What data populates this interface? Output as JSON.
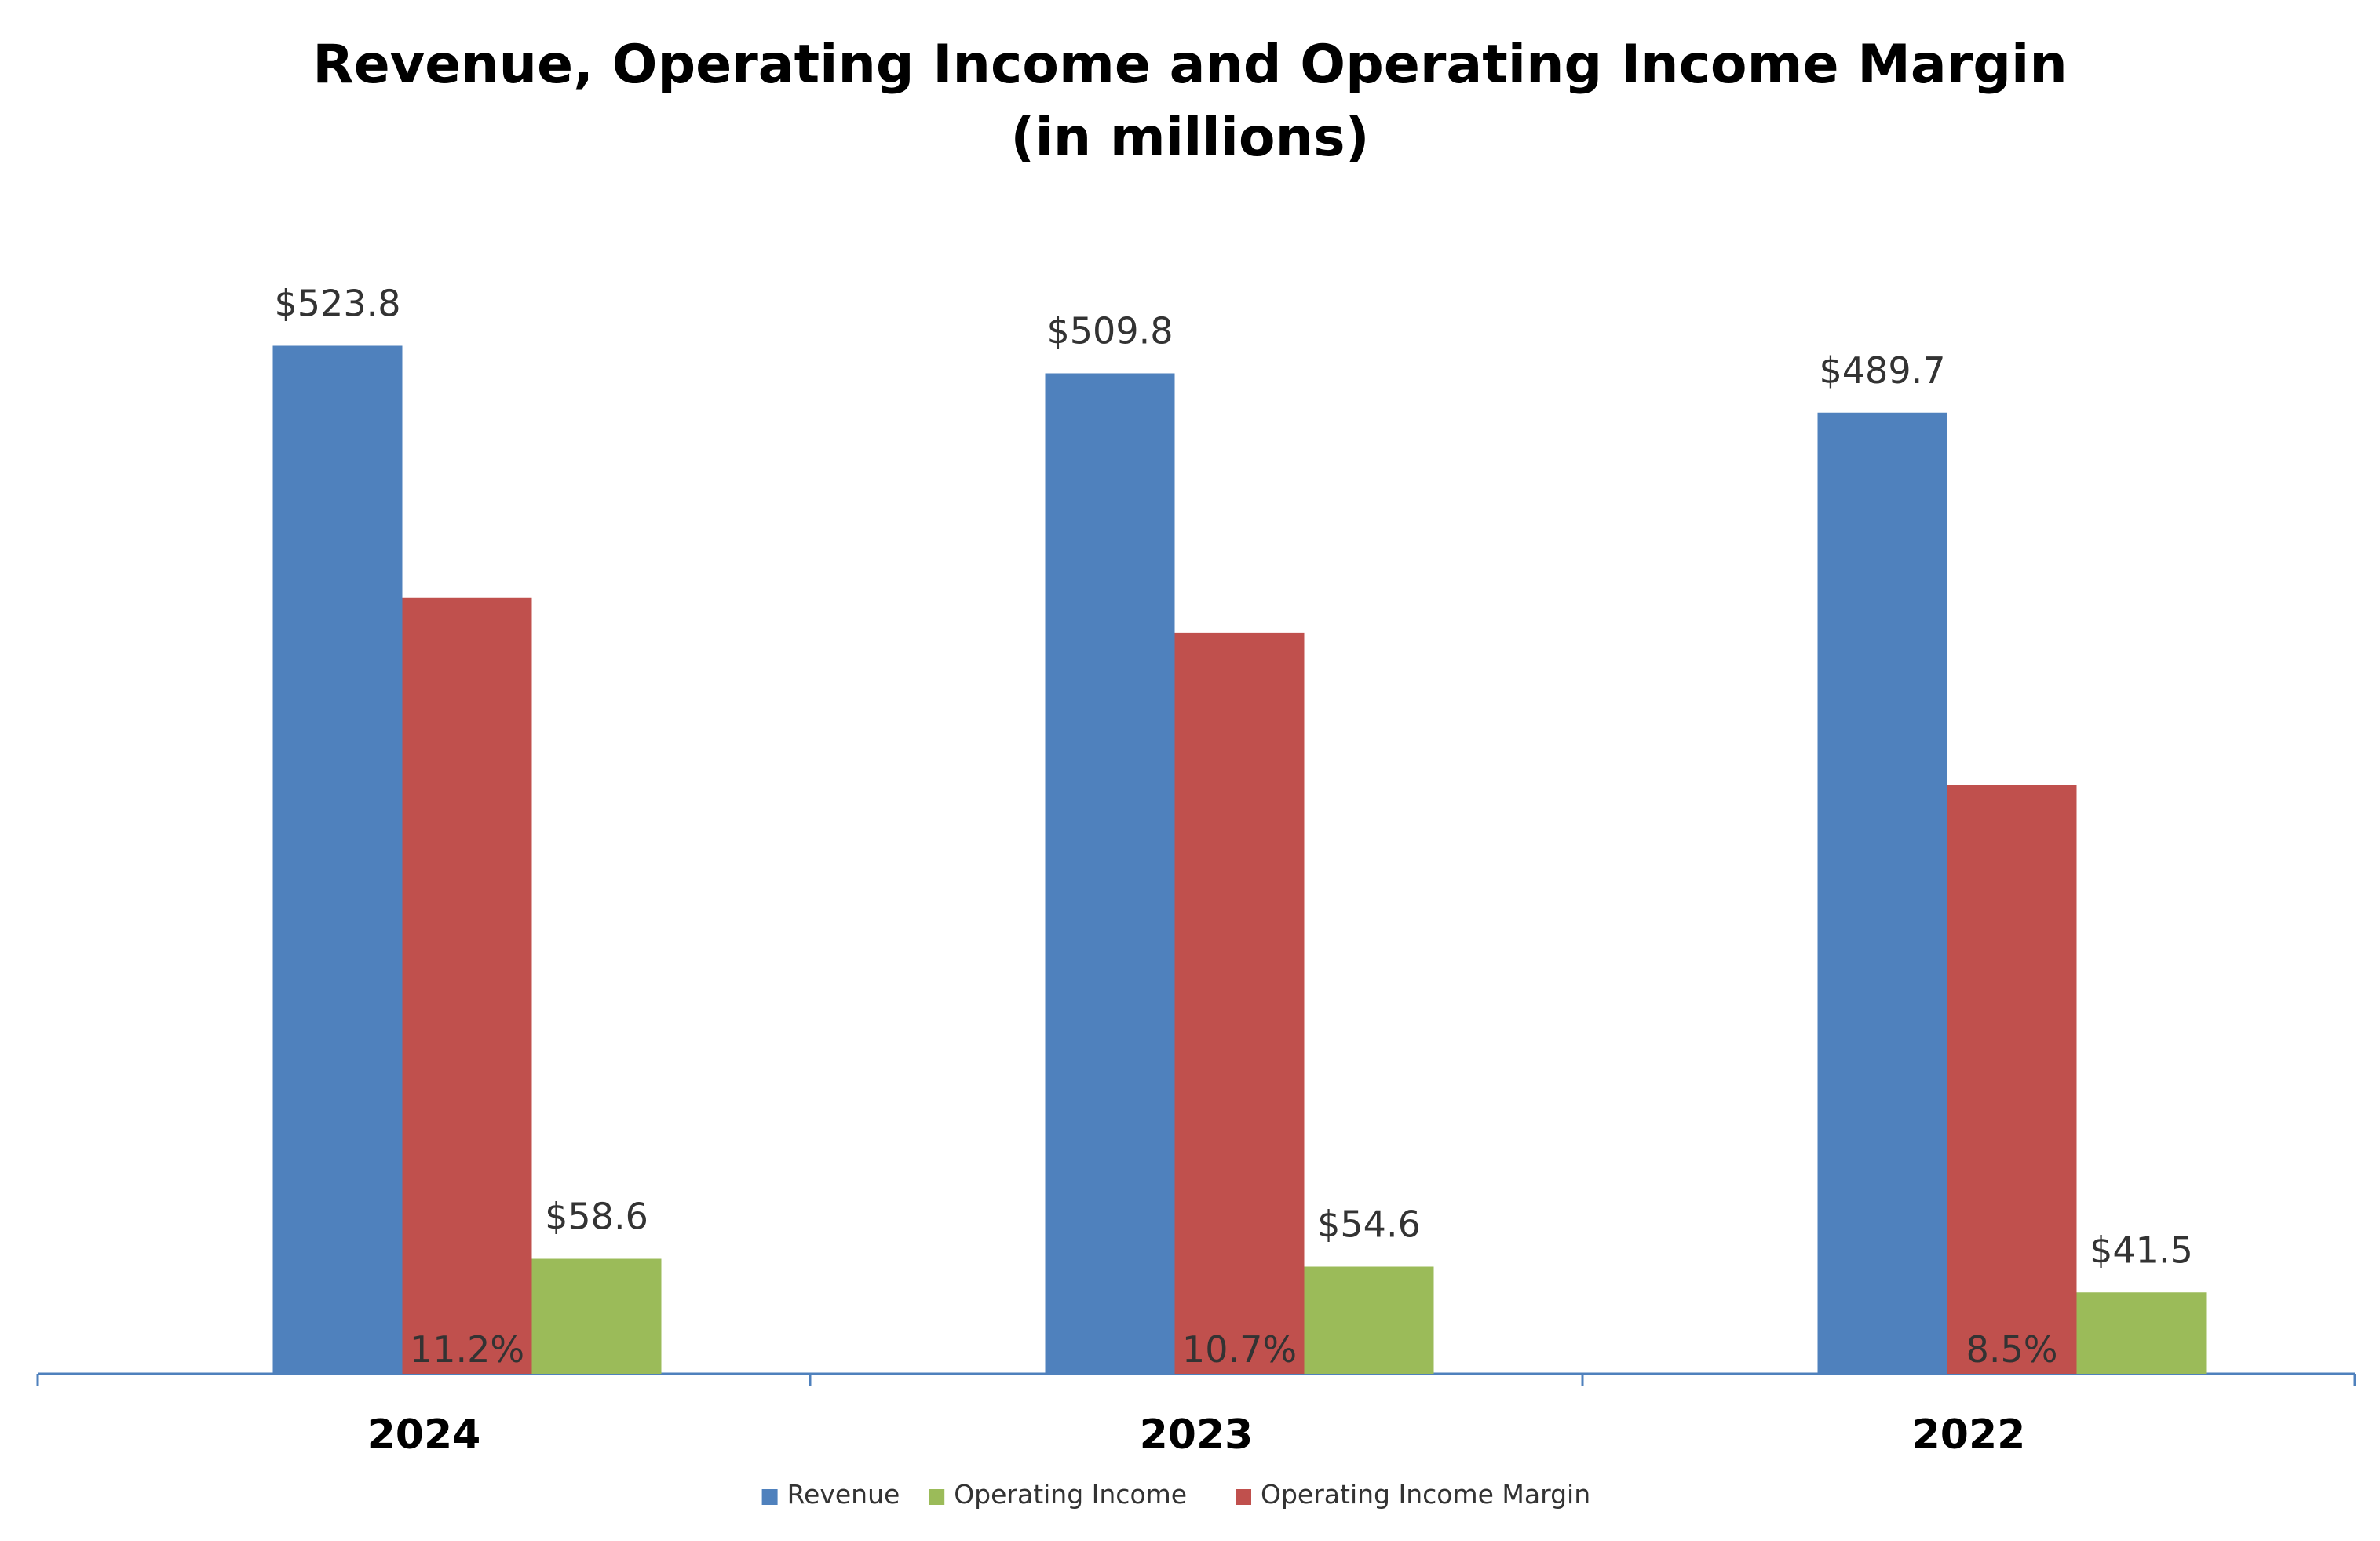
{
  "chart_data": {
    "type": "bar",
    "title": "Revenue, Operating Income and Operating Income Margin",
    "subtitle": "(in millions)",
    "categories": [
      "2024",
      "2023",
      "2022"
    ],
    "series": [
      {
        "name": "Revenue",
        "color": "#4F81BD",
        "values": [
          523.8,
          509.8,
          489.7
        ],
        "labels": [
          "$523.8",
          "$509.8",
          "$489.7"
        ]
      },
      {
        "name": "Operating Income Margin",
        "color": "#C0504D",
        "values": [
          11.2,
          10.7,
          8.5
        ],
        "unit": "%",
        "labels": [
          "11.2%",
          "10.7%",
          "8.5%"
        ]
      },
      {
        "name": "Operating Income",
        "color": "#9BBB59",
        "values": [
          58.6,
          54.6,
          41.5
        ],
        "labels": [
          "$58.6",
          "$54.6",
          "$41.5"
        ]
      }
    ],
    "legend": {
      "position": "bottom",
      "items": [
        "Revenue",
        "Operating Income",
        "Operating Income Margin"
      ]
    },
    "margin_axis_max": 17,
    "ylim": [
      0,
      600
    ],
    "grid": false,
    "axis_color": "#4F81BD"
  }
}
